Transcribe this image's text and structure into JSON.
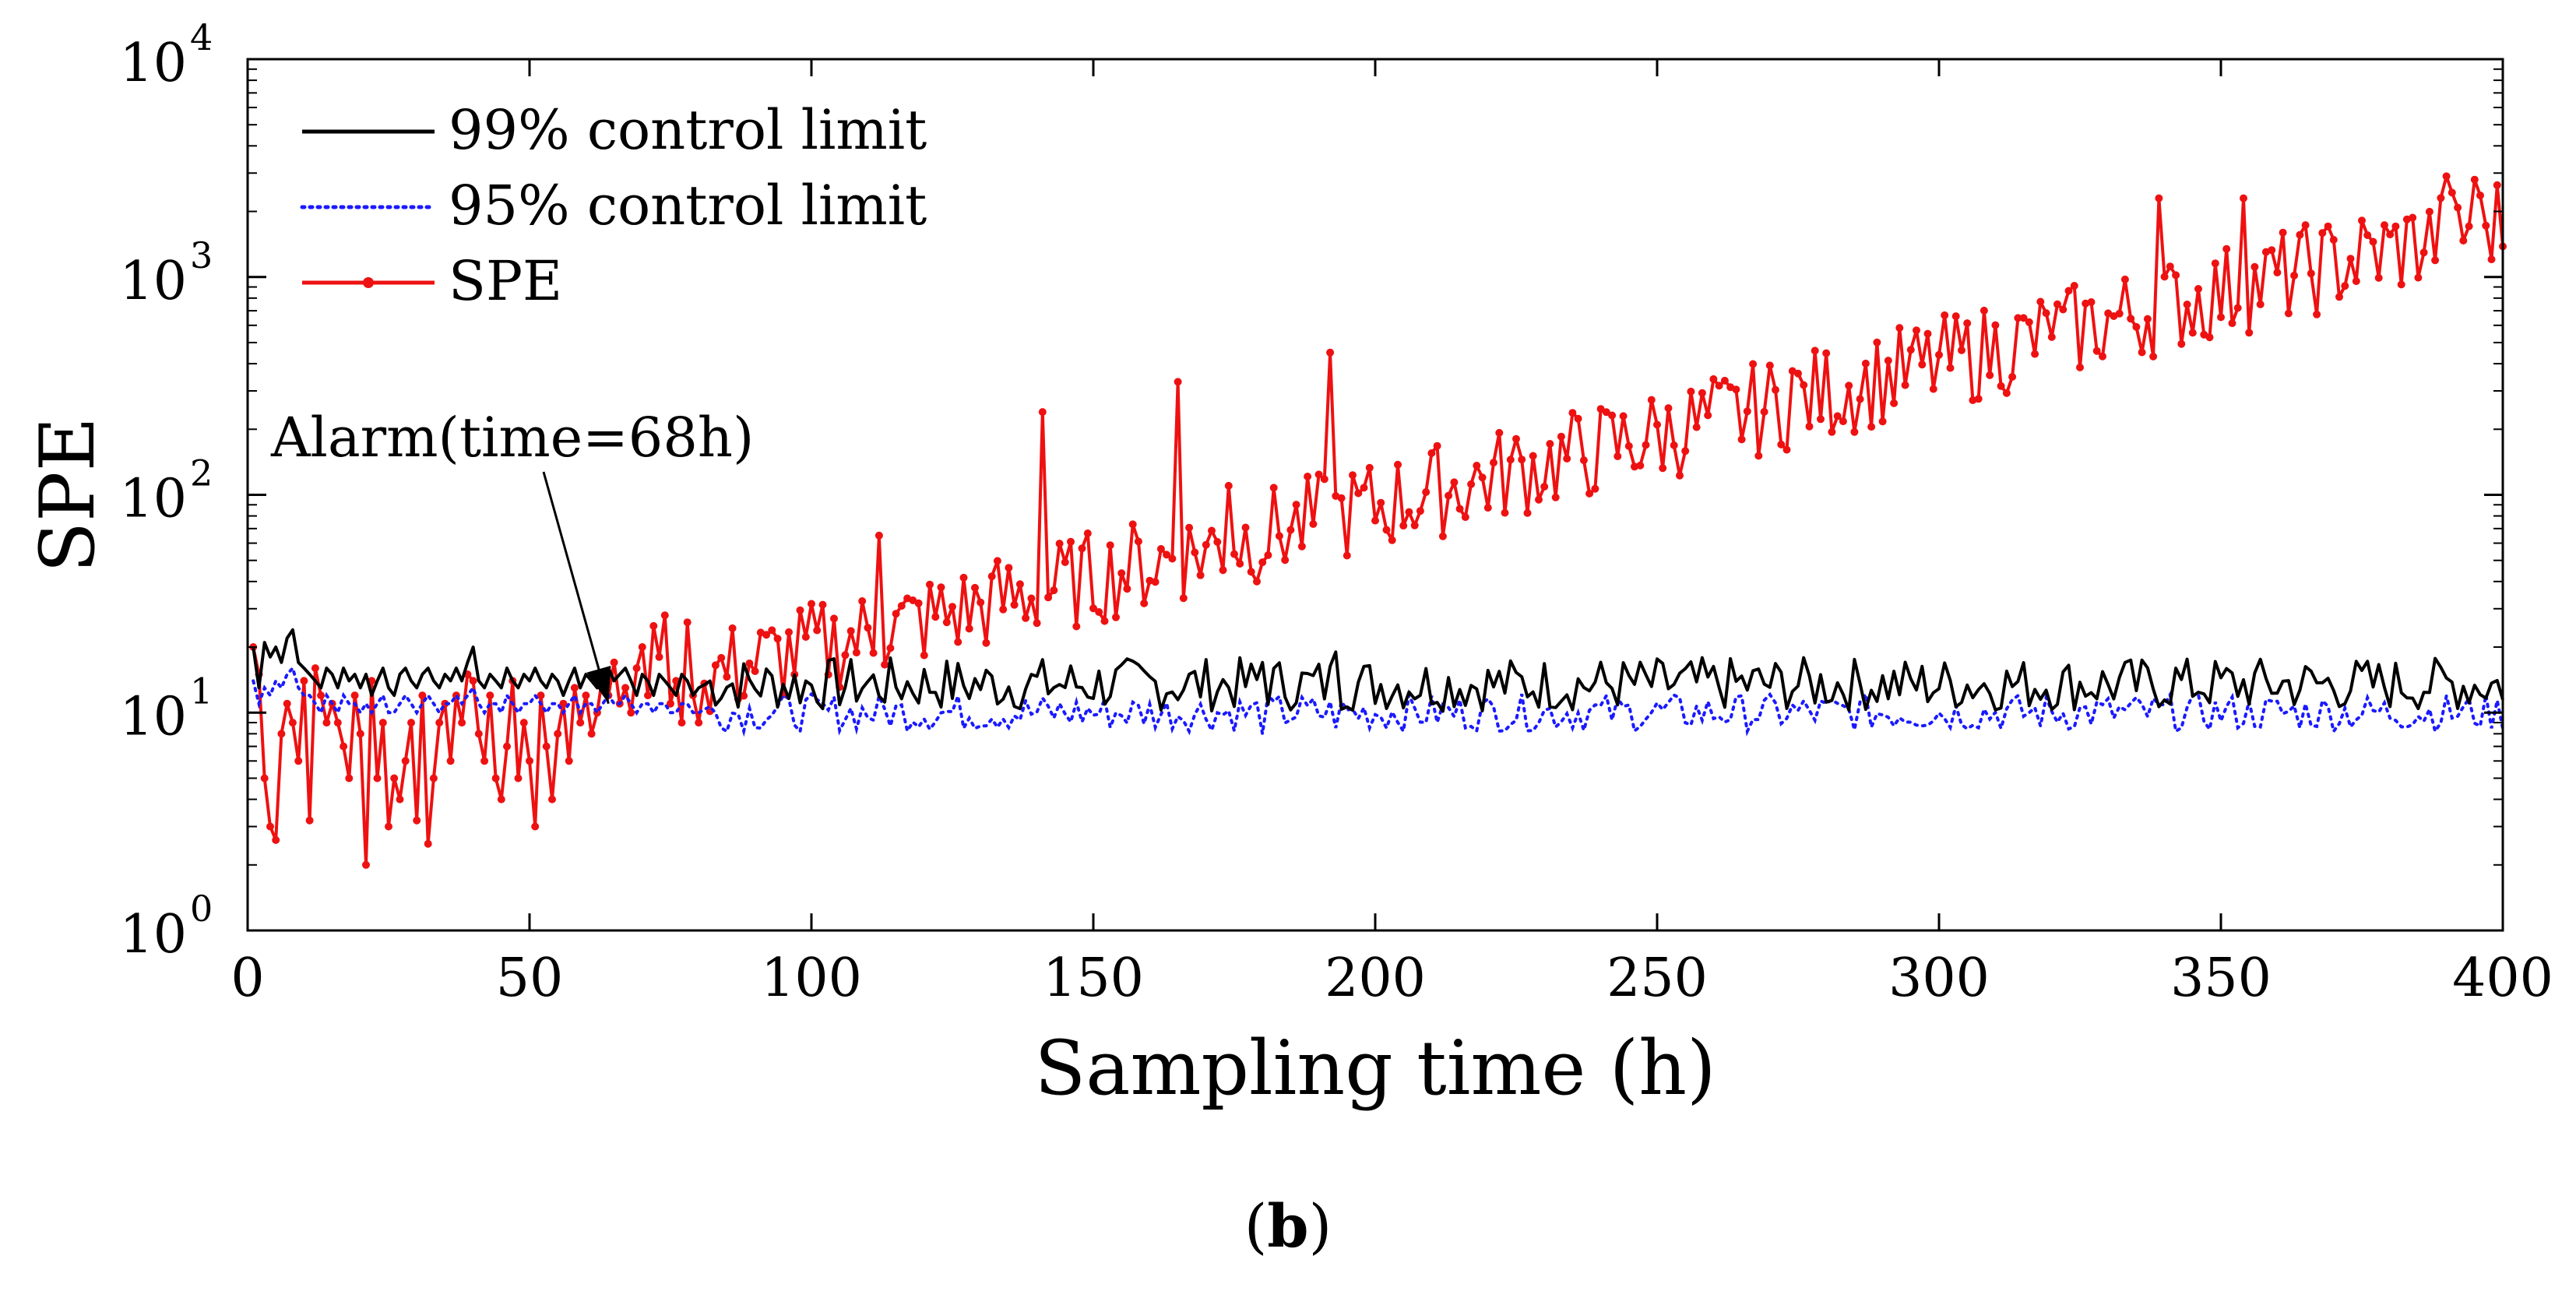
{
  "caption": {
    "open": "(",
    "letter": "b",
    "close": ")"
  },
  "chart_data": {
    "type": "line",
    "title": "",
    "xlabel": "Sampling time (h)",
    "ylabel": "SPE",
    "xlim": [
      0,
      400
    ],
    "ylim": [
      1,
      10000
    ],
    "yscale": "log",
    "grid": false,
    "legend_position": "top-left",
    "xticks": [
      0,
      50,
      100,
      150,
      200,
      250,
      300,
      350,
      400
    ],
    "yticks": [
      {
        "base": "10",
        "exp": "0"
      },
      {
        "base": "10",
        "exp": "1"
      },
      {
        "base": "10",
        "exp": "2"
      },
      {
        "base": "10",
        "exp": "3"
      },
      {
        "base": "10",
        "exp": "4"
      }
    ],
    "annotation": {
      "text": "Alarm(time=68h)",
      "x": 64,
      "y": 11
    },
    "series": [
      {
        "name": "99% control limit",
        "color": "#000000",
        "style": "solid",
        "x_start": 1,
        "x_step": 1,
        "base": [
          20,
          13,
          21,
          18,
          20,
          17,
          22,
          24,
          17,
          16,
          15,
          14,
          13,
          16,
          15,
          13,
          16,
          14,
          15,
          13,
          15,
          12,
          14,
          16,
          13,
          12,
          15,
          16,
          14,
          13,
          15,
          16,
          14,
          13,
          15,
          14,
          16,
          14,
          17,
          20,
          14,
          13,
          15,
          14,
          13,
          16,
          14,
          13,
          15,
          14,
          16,
          14,
          13,
          15,
          14,
          12,
          14,
          16,
          13,
          15,
          14,
          13,
          15,
          16,
          14,
          15,
          16,
          14,
          12,
          15,
          14,
          12,
          15,
          14,
          13,
          12,
          15,
          14,
          12,
          13
        ],
        "mean": 13.5,
        "amp": 0.13,
        "spikes": [
          [
            180,
            17
          ],
          [
            193,
            19
          ],
          [
            333,
            17
          ],
          [
            342,
            16
          ]
        ]
      },
      {
        "name": "95% control limit",
        "color": "#1a1aff",
        "style": "dotted",
        "x_start": 1,
        "x_step": 1,
        "base": [
          14,
          11,
          13,
          12,
          14,
          13,
          15,
          16,
          13,
          12,
          12,
          11,
          10,
          12,
          11,
          10,
          12,
          11,
          11,
          10,
          11,
          10,
          11,
          12,
          10,
          10,
          11,
          12,
          11,
          10,
          11,
          12,
          11,
          10,
          11,
          11,
          12,
          11,
          12,
          13,
          11,
          10,
          11,
          11,
          10,
          12,
          11,
          10,
          11,
          11,
          12,
          11,
          10,
          11,
          11,
          10,
          11,
          12,
          10,
          11,
          11,
          10,
          11,
          12,
          11,
          11,
          12,
          11,
          10,
          11,
          11,
          10,
          11,
          11,
          10,
          10,
          11,
          11,
          10,
          10
        ],
        "mean": 10,
        "amp": 0.09,
        "spikes": [
          [
            180,
            8
          ],
          [
            193,
            8.5
          ]
        ]
      },
      {
        "name": "SPE",
        "color": "#ee1111",
        "style": "solid-marker",
        "x_start": 1,
        "x_step": 1,
        "early": [
          20,
          15,
          5,
          3,
          2.6,
          8,
          11,
          9,
          6,
          14,
          3.2,
          16,
          12,
          9,
          11,
          9,
          7,
          5,
          12,
          8,
          2,
          14,
          5,
          9,
          3,
          5,
          4,
          6,
          9,
          3.2,
          12,
          2.5,
          5,
          9,
          11,
          6,
          12,
          9,
          15,
          14,
          8,
          6,
          12,
          5,
          4,
          7,
          14,
          5,
          9,
          6,
          3,
          12,
          7,
          4,
          8,
          11,
          6,
          13,
          9,
          12,
          8,
          10,
          15,
          12,
          17,
          11,
          13,
          10,
          16,
          20,
          12,
          25,
          18,
          28,
          11,
          14,
          9,
          26,
          12,
          9
        ],
        "trend_start": 82,
        "trend_start_value": 15,
        "trend_end_value": 1800,
        "noise": 0.22,
        "points": [
          [
            165,
            330
          ],
          [
            174,
            110
          ],
          [
            141,
            240
          ],
          [
            112,
            65
          ],
          [
            192,
            450
          ],
          [
            339,
            2300
          ],
          [
            354,
            2300
          ],
          [
            390,
            2900
          ],
          [
            395,
            2800
          ],
          [
            401,
            1700
          ],
          [
            274,
            370
          ],
          [
            320,
            530
          ]
        ]
      }
    ]
  }
}
